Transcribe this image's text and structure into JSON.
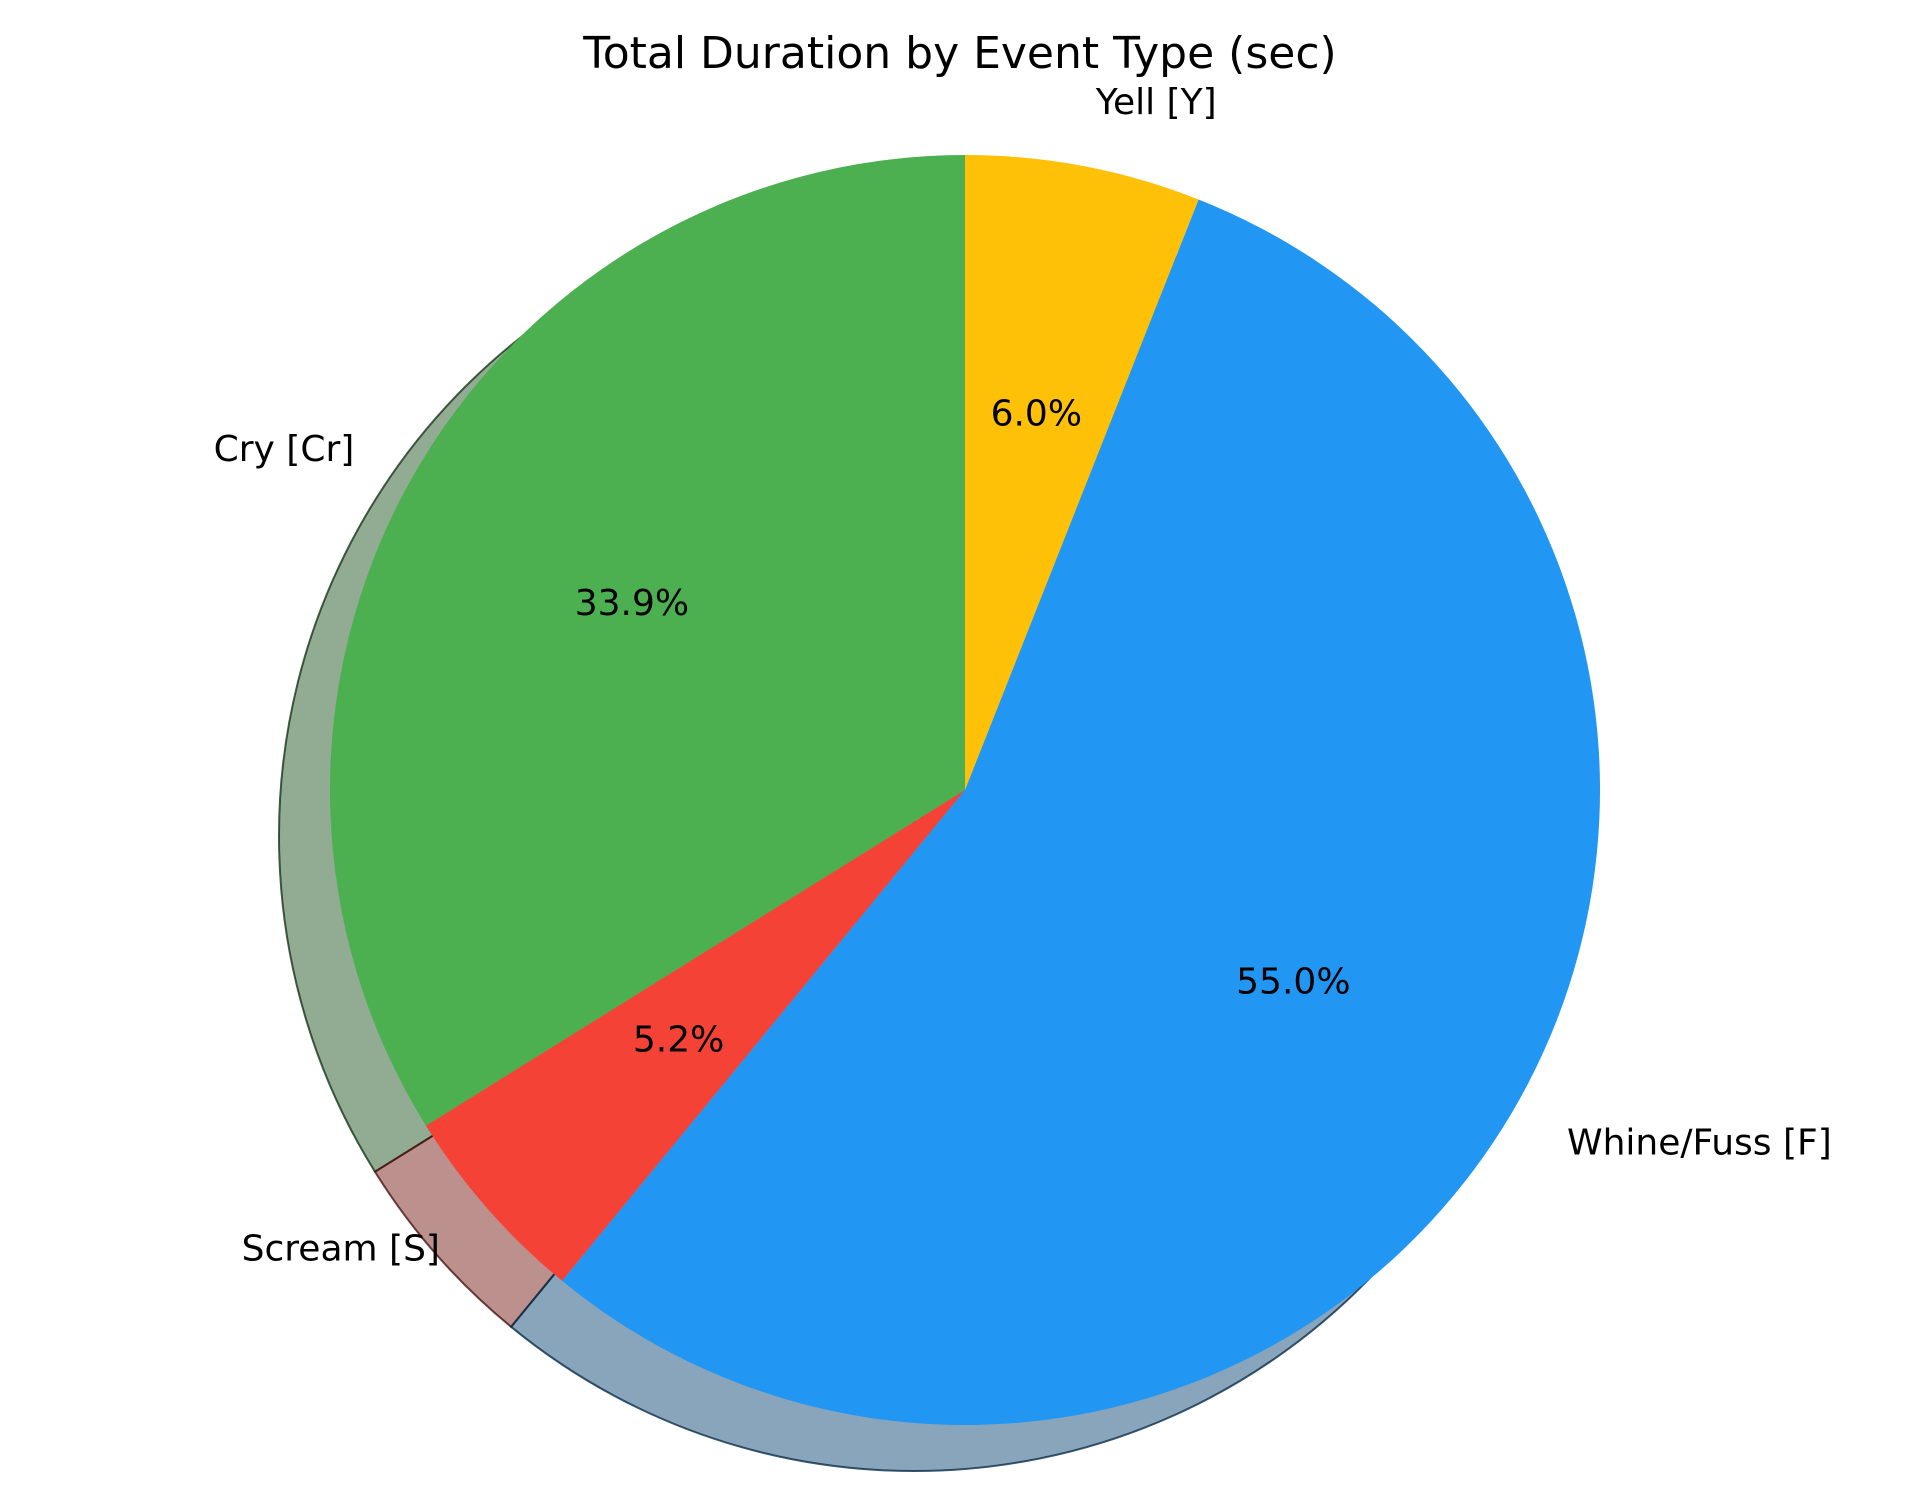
{
  "chart_data": {
    "type": "pie",
    "title": "Total Duration by Event Type (sec)",
    "start_angle_deg": 90,
    "direction": "counterclockwise",
    "shadow": true,
    "slices": [
      {
        "label": "Cry [Cr]",
        "percent": 33.9,
        "pct_text": "33.9%",
        "color": "#4caf50"
      },
      {
        "label": "Scream [S]",
        "percent": 5.2,
        "pct_text": "5.2%",
        "color": "#f44336"
      },
      {
        "label": "Whine/Fuss [F]",
        "percent": 55.0,
        "pct_text": "55.0%",
        "color": "#2196f3"
      },
      {
        "label": "Yell [Y]",
        "percent": 6.0,
        "pct_text": "6.0%",
        "color": "#ffc107"
      }
    ]
  }
}
